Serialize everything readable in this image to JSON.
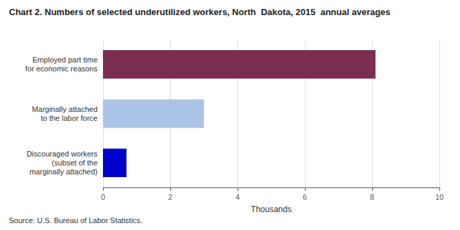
{
  "chart_data": {
    "type": "bar",
    "orientation": "horizontal",
    "title": "Chart 2. Numbers of selected underutilized workers, North  Dakota, 2015  annual averages",
    "categories": [
      "Discouraged workers\n(subset of the\nmarginally attached)",
      "Marginally attached\nto the labor force",
      "Employed part time\nfor economic reasons"
    ],
    "values": [
      0.7,
      3.0,
      8.1
    ],
    "colors": [
      "#0000cc",
      "#aac4e8",
      "#7b2d52"
    ],
    "xlabel": "Thousands",
    "xlim": [
      0,
      10
    ],
    "xticks": [
      0,
      2,
      4,
      6,
      8,
      10
    ],
    "grid": true,
    "source": "Source: U.S. Bureau of Labor Statistics."
  }
}
